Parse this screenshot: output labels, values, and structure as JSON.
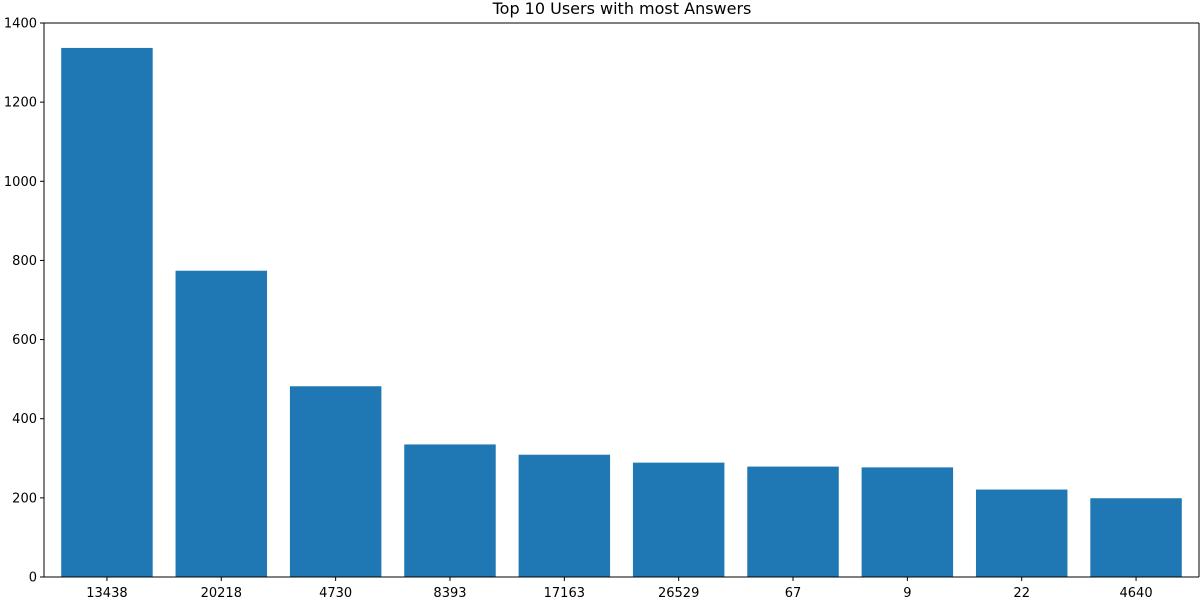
{
  "chart_data": {
    "type": "bar",
    "title": "Top 10 Users with most Answers",
    "xlabel": "",
    "ylabel": "",
    "categories": [
      "13438",
      "20218",
      "4730",
      "8393",
      "17163",
      "26529",
      "67",
      "9",
      "22",
      "4640"
    ],
    "values": [
      1337,
      774,
      482,
      335,
      309,
      289,
      279,
      277,
      221,
      199
    ],
    "ylim": [
      0,
      1400
    ],
    "yticks": [
      0,
      200,
      400,
      600,
      800,
      1000,
      1200,
      1400
    ],
    "bar_color": "#1f77b4",
    "grid": false
  }
}
